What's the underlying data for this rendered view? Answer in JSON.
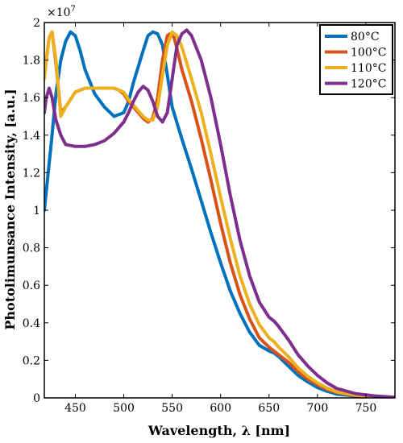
{
  "chart_data": {
    "type": "line",
    "title": "",
    "xlabel": "Wavelength, λ [nm]",
    "ylabel": "Photolimunsance Intensity, [a.u.]",
    "y_exponent_label": "×10",
    "y_exponent_power": "7",
    "xlim": [
      418,
      780
    ],
    "ylim": [
      0,
      2.0
    ],
    "y_scale_multiplier": 10000000,
    "x_ticks": [
      450,
      500,
      550,
      600,
      650,
      700,
      750
    ],
    "x_tick_labels": [
      "450",
      "500",
      "550",
      "600",
      "650",
      "700",
      "750"
    ],
    "y_ticks": [
      0,
      0.2,
      0.4,
      0.6,
      0.8,
      1.0,
      1.2,
      1.4,
      1.6,
      1.8,
      2.0
    ],
    "y_tick_labels": [
      "0",
      "0.2",
      "0.4",
      "0.6",
      "0.8",
      "1",
      "1.2",
      "1.4",
      "1.6",
      "1.8",
      "2"
    ],
    "grid": false,
    "legend_position": "top-right",
    "series": [
      {
        "name": "80°C",
        "color": "#0072BD",
        "x": [
          418,
          425,
          430,
          435,
          440,
          445,
          450,
          455,
          460,
          470,
          480,
          490,
          500,
          505,
          510,
          520,
          525,
          530,
          535,
          540,
          545,
          550,
          560,
          570,
          580,
          590,
          600,
          610,
          620,
          630,
          640,
          650,
          655,
          660,
          670,
          680,
          690,
          700,
          710,
          720,
          740,
          760,
          780
        ],
        "y": [
          1.0,
          1.35,
          1.62,
          1.8,
          1.9,
          1.95,
          1.93,
          1.85,
          1.75,
          1.62,
          1.55,
          1.5,
          1.52,
          1.58,
          1.68,
          1.85,
          1.93,
          1.95,
          1.94,
          1.88,
          1.72,
          1.55,
          1.38,
          1.22,
          1.05,
          0.88,
          0.72,
          0.57,
          0.45,
          0.35,
          0.28,
          0.25,
          0.24,
          0.22,
          0.17,
          0.12,
          0.085,
          0.055,
          0.035,
          0.02,
          0.01,
          0.004,
          0.001
        ]
      },
      {
        "name": "100°C",
        "color": "#D95319",
        "x": [
          418,
          420,
          423,
          426,
          430,
          435,
          440,
          450,
          460,
          470,
          480,
          490,
          495,
          500,
          505,
          510,
          515,
          520,
          525,
          530,
          535,
          540,
          545,
          548,
          552,
          555,
          560,
          570,
          580,
          590,
          600,
          610,
          620,
          630,
          640,
          650,
          655,
          660,
          670,
          680,
          690,
          700,
          710,
          720,
          740,
          760,
          780
        ],
        "y": [
          1.72,
          1.8,
          1.92,
          1.95,
          1.78,
          1.52,
          1.55,
          1.63,
          1.65,
          1.65,
          1.65,
          1.65,
          1.64,
          1.62,
          1.58,
          1.55,
          1.52,
          1.49,
          1.47,
          1.49,
          1.6,
          1.8,
          1.93,
          1.94,
          1.92,
          1.86,
          1.75,
          1.58,
          1.38,
          1.16,
          0.93,
          0.72,
          0.55,
          0.42,
          0.32,
          0.27,
          0.25,
          0.23,
          0.19,
          0.14,
          0.1,
          0.07,
          0.045,
          0.028,
          0.012,
          0.005,
          0.002
        ]
      },
      {
        "name": "110°C",
        "color": "#EDB120",
        "x": [
          418,
          420,
          423,
          426,
          430,
          435,
          440,
          450,
          460,
          470,
          480,
          490,
          495,
          500,
          505,
          510,
          515,
          520,
          525,
          530,
          535,
          540,
          545,
          550,
          555,
          560,
          570,
          580,
          590,
          600,
          610,
          620,
          630,
          640,
          650,
          655,
          660,
          670,
          680,
          690,
          700,
          710,
          720,
          740,
          760,
          780
        ],
        "y": [
          1.7,
          1.8,
          1.92,
          1.95,
          1.8,
          1.5,
          1.55,
          1.63,
          1.65,
          1.65,
          1.65,
          1.65,
          1.64,
          1.63,
          1.59,
          1.56,
          1.53,
          1.5,
          1.48,
          1.48,
          1.55,
          1.72,
          1.88,
          1.95,
          1.93,
          1.87,
          1.7,
          1.52,
          1.3,
          1.07,
          0.85,
          0.65,
          0.5,
          0.39,
          0.32,
          0.3,
          0.27,
          0.22,
          0.16,
          0.115,
          0.08,
          0.052,
          0.032,
          0.014,
          0.006,
          0.002
        ]
      },
      {
        "name": "120°C",
        "color": "#7E2F8E",
        "x": [
          418,
          420,
          423,
          426,
          430,
          435,
          440,
          450,
          460,
          470,
          480,
          490,
          500,
          505,
          510,
          515,
          520,
          525,
          530,
          535,
          540,
          545,
          550,
          555,
          560,
          565,
          570,
          580,
          590,
          600,
          610,
          620,
          630,
          640,
          650,
          655,
          660,
          670,
          680,
          690,
          700,
          710,
          720,
          740,
          760,
          780
        ],
        "y": [
          1.52,
          1.6,
          1.65,
          1.6,
          1.48,
          1.4,
          1.35,
          1.34,
          1.34,
          1.35,
          1.37,
          1.41,
          1.47,
          1.52,
          1.58,
          1.63,
          1.66,
          1.64,
          1.58,
          1.5,
          1.47,
          1.52,
          1.7,
          1.88,
          1.94,
          1.96,
          1.93,
          1.8,
          1.6,
          1.35,
          1.08,
          0.84,
          0.65,
          0.51,
          0.43,
          0.41,
          0.38,
          0.31,
          0.23,
          0.17,
          0.12,
          0.08,
          0.05,
          0.022,
          0.01,
          0.003
        ]
      }
    ]
  }
}
